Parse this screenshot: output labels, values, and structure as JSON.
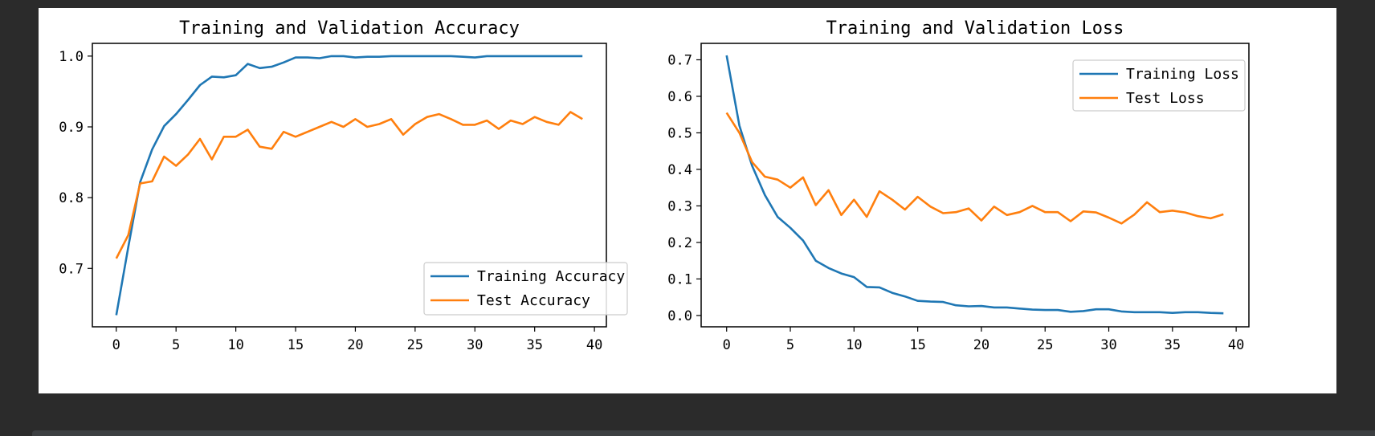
{
  "chart_data": [
    {
      "type": "line",
      "title": "Training and Validation Accuracy",
      "xlabel": "",
      "ylabel": "",
      "xlim": [
        -2,
        41
      ],
      "ylim": [
        0.6175,
        1.018
      ],
      "xticks": [
        0,
        5,
        10,
        15,
        20,
        25,
        30,
        35,
        40
      ],
      "yticks": [
        0.7,
        0.8,
        0.9,
        1.0
      ],
      "ytick_labels": [
        "0.7",
        "0.8",
        "0.9",
        "1.0"
      ],
      "grid": false,
      "legend": "lower right",
      "x": [
        0,
        1,
        2,
        3,
        4,
        5,
        6,
        7,
        8,
        9,
        10,
        11,
        12,
        13,
        14,
        15,
        16,
        17,
        18,
        19,
        20,
        21,
        22,
        23,
        24,
        25,
        26,
        27,
        28,
        29,
        30,
        31,
        32,
        33,
        34,
        35,
        36,
        37,
        38,
        39
      ],
      "series": [
        {
          "name": "Training Accuracy",
          "color": "#1f77b4",
          "values": [
            0.634,
            0.73,
            0.822,
            0.868,
            0.901,
            0.918,
            0.938,
            0.959,
            0.971,
            0.97,
            0.973,
            0.989,
            0.983,
            0.985,
            0.991,
            0.998,
            0.998,
            0.997,
            1.0,
            1.0,
            0.998,
            0.999,
            0.999,
            1.0,
            1.0,
            1.0,
            1.0,
            1.0,
            1.0,
            0.999,
            0.998,
            1.0,
            1.0,
            1.0,
            1.0,
            1.0,
            1.0,
            1.0,
            1.0,
            1.0
          ]
        },
        {
          "name": "Test Accuracy",
          "color": "#ff7f0e",
          "values": [
            0.714,
            0.747,
            0.82,
            0.823,
            0.858,
            0.845,
            0.861,
            0.883,
            0.854,
            0.886,
            0.886,
            0.896,
            0.872,
            0.869,
            0.893,
            0.886,
            0.893,
            0.9,
            0.907,
            0.9,
            0.911,
            0.9,
            0.904,
            0.911,
            0.889,
            0.904,
            0.914,
            0.918,
            0.911,
            0.903,
            0.903,
            0.909,
            0.897,
            0.909,
            0.904,
            0.914,
            0.907,
            0.903,
            0.921,
            0.911
          ]
        }
      ]
    },
    {
      "type": "line",
      "title": "Training and Validation Loss",
      "xlabel": "",
      "ylabel": "",
      "xlim": [
        -2,
        41
      ],
      "ylim": [
        -0.031,
        0.745
      ],
      "xticks": [
        0,
        5,
        10,
        15,
        20,
        25,
        30,
        35,
        40
      ],
      "yticks": [
        0.0,
        0.1,
        0.2,
        0.3,
        0.4,
        0.5,
        0.6,
        0.7
      ],
      "ytick_labels": [
        "0.0",
        "0.1",
        "0.2",
        "0.3",
        "0.4",
        "0.5",
        "0.6",
        "0.7"
      ],
      "grid": false,
      "legend": "upper right",
      "x": [
        0,
        1,
        2,
        3,
        4,
        5,
        6,
        7,
        8,
        9,
        10,
        11,
        12,
        13,
        14,
        15,
        16,
        17,
        18,
        19,
        20,
        21,
        22,
        23,
        24,
        25,
        26,
        27,
        28,
        29,
        30,
        31,
        32,
        33,
        34,
        35,
        36,
        37,
        38,
        39
      ],
      "series": [
        {
          "name": "Training Loss",
          "color": "#1f77b4",
          "values": [
            0.712,
            0.52,
            0.41,
            0.33,
            0.27,
            0.24,
            0.205,
            0.15,
            0.13,
            0.115,
            0.105,
            0.078,
            0.077,
            0.062,
            0.052,
            0.04,
            0.038,
            0.037,
            0.028,
            0.025,
            0.026,
            0.022,
            0.022,
            0.019,
            0.016,
            0.015,
            0.015,
            0.01,
            0.012,
            0.017,
            0.017,
            0.011,
            0.009,
            0.009,
            0.009,
            0.007,
            0.009,
            0.009,
            0.007,
            0.006
          ]
        },
        {
          "name": "Test Loss",
          "color": "#ff7f0e",
          "values": [
            0.555,
            0.5,
            0.42,
            0.38,
            0.372,
            0.35,
            0.378,
            0.302,
            0.343,
            0.275,
            0.317,
            0.27,
            0.34,
            0.317,
            0.29,
            0.325,
            0.298,
            0.28,
            0.283,
            0.293,
            0.26,
            0.298,
            0.275,
            0.283,
            0.3,
            0.283,
            0.283,
            0.258,
            0.285,
            0.282,
            0.268,
            0.252,
            0.276,
            0.31,
            0.283,
            0.287,
            0.282,
            0.272,
            0.266,
            0.277
          ]
        }
      ]
    }
  ]
}
